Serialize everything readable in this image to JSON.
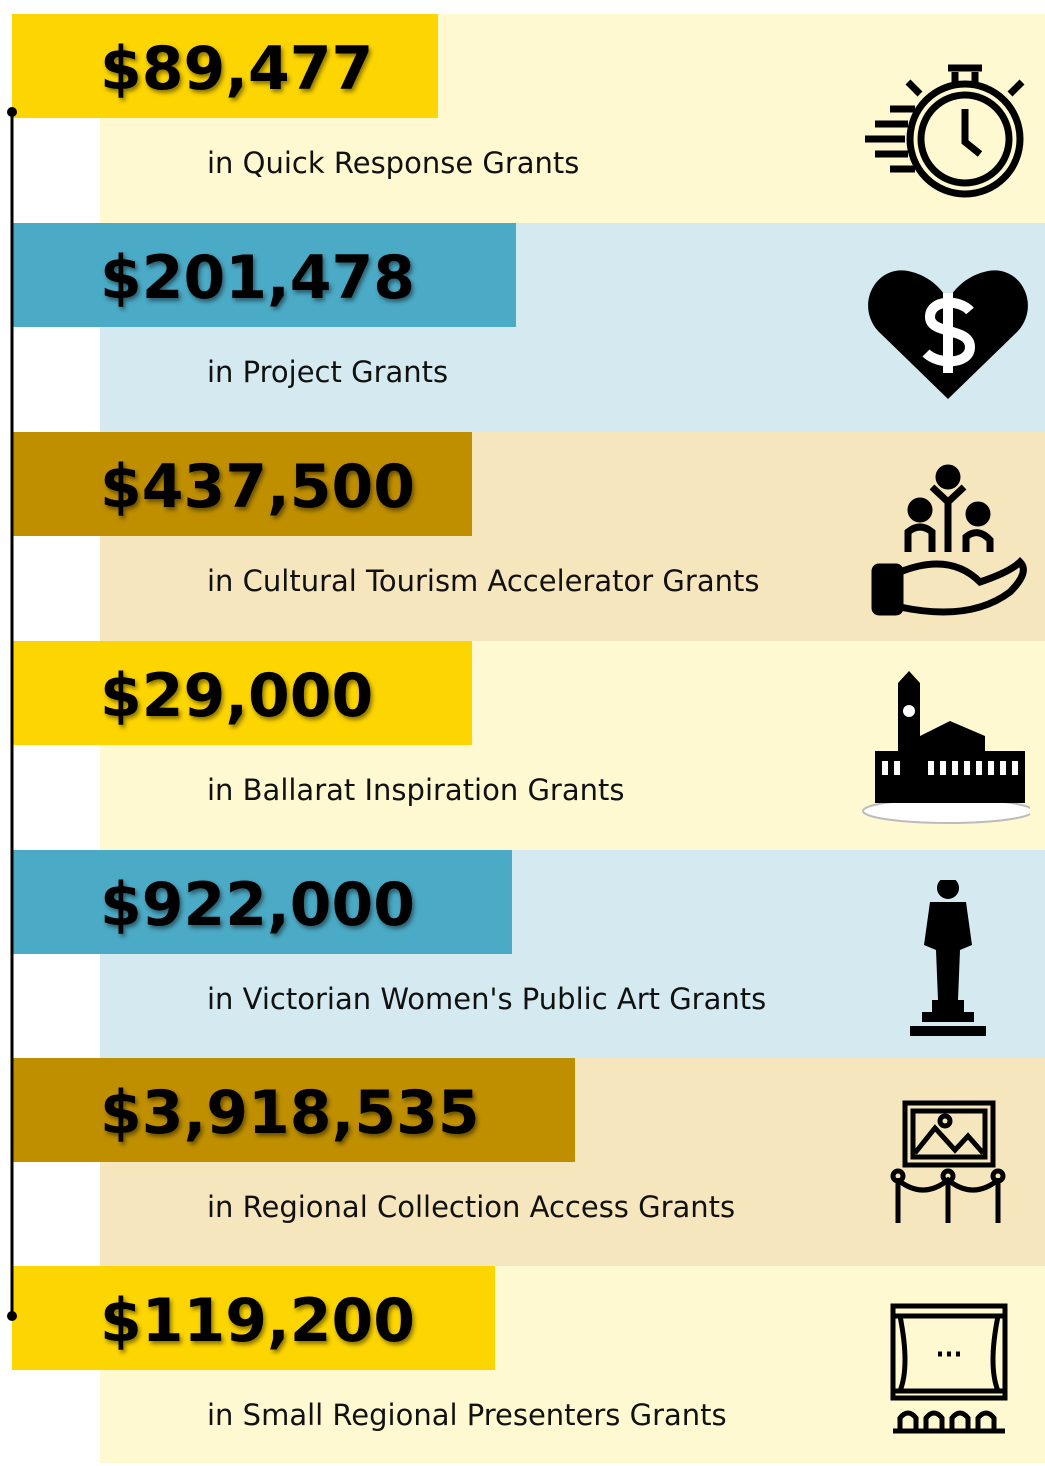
{
  "items": [
    {
      "amount": "$89,477",
      "label": "in Quick Response Grants"
    },
    {
      "amount": "$201,478",
      "label": "in Project Grants"
    },
    {
      "amount": "$437,500",
      "label": "in Cultural Tourism Accelerator Grants"
    },
    {
      "amount": "$29,000",
      "label": "in Ballarat Inspiration Grants"
    },
    {
      "amount": "$922,000",
      "label": "in Victorian Women's Public Art Grants"
    },
    {
      "amount": "$3,918,535",
      "label": "in Regional Collection Access Grants"
    },
    {
      "amount": "$119,200",
      "label": "in Small Regional Presenters Grants"
    }
  ]
}
